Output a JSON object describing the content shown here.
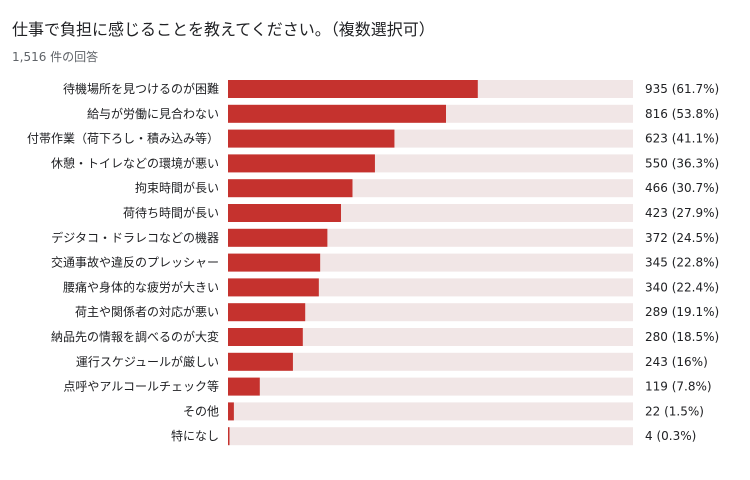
{
  "header": {
    "title": "仕事で負担に感じることを教えてください。（複数選択可）",
    "response_count": "1,516 件の回答"
  },
  "chart_data": {
    "type": "bar",
    "orientation": "horizontal",
    "title": "仕事で負担に感じることを教えてください。（複数選択可）",
    "total_responses": 1516,
    "categories": [
      "待機場所を見つけるのが困難",
      "給与が労働に見合わない",
      "付帯作業（荷下ろし・積み込み等）",
      "休憩・トイレなどの環境が悪い",
      "拘束時間が長い",
      "荷待ち時間が長い",
      "デジタコ・ドラレコなどの機器",
      "交通事故や違反のプレッシャー",
      "腰痛や身体的な疲労が大きい",
      "荷主や関係者の対応が悪い",
      "納品先の情報を調べるのが大変",
      "運行スケジュールが厳しい",
      "点呼やアルコールチェック等",
      "その他",
      "特になし"
    ],
    "values": [
      935,
      816,
      623,
      550,
      466,
      423,
      372,
      345,
      340,
      289,
      280,
      243,
      119,
      22,
      4
    ],
    "value_labels": [
      "935 (61.7%)",
      "816 (53.8%)",
      "623 (41.1%)",
      "550 (36.3%)",
      "466 (30.7%)",
      "423 (27.9%)",
      "372 (24.5%)",
      "345 (22.8%)",
      "340 (22.4%)",
      "289 (19.1%)",
      "280 (18.5%)",
      "243 (16%)",
      "119 (7.8%)",
      "22 (1.5%)",
      "4 (0.3%)"
    ],
    "xlim": [
      0,
      1516
    ],
    "colors": {
      "bar": "#c5322e",
      "track": "#f1e6e6"
    },
    "grid": false,
    "legend": "none"
  }
}
